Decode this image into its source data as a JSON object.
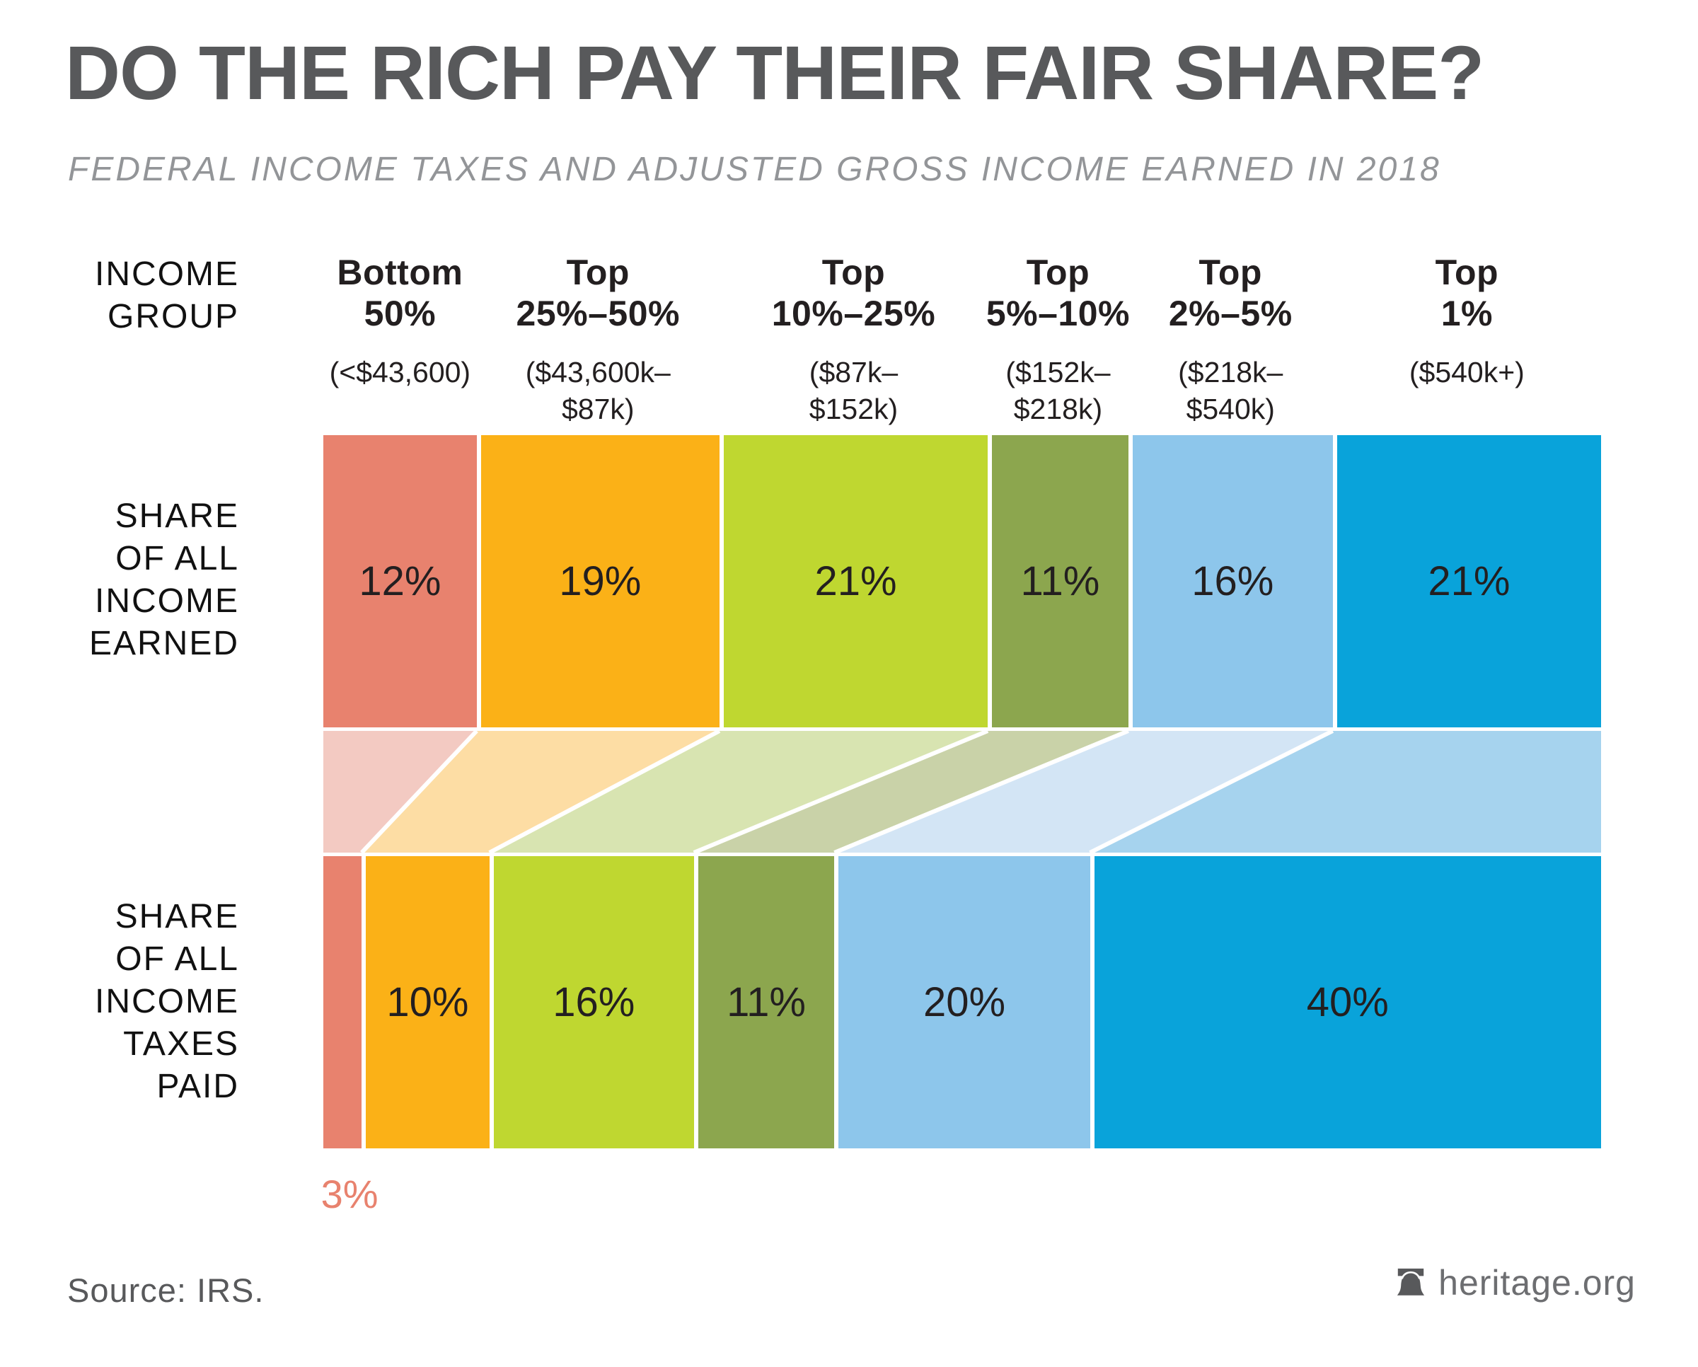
{
  "title": "DO THE RICH PAY THEIR FAIR SHARE?",
  "subtitle": "FEDERAL INCOME TAXES AND ADJUSTED GROSS INCOME EARNED IN 2018",
  "income_group_label": "INCOME\nGROUP",
  "row_labels": {
    "earned": "SHARE\nOF ALL\nINCOME\nEARNED",
    "taxes": "SHARE\nOF ALL\nINCOME\nTAXES\nPAID"
  },
  "footer": {
    "source": "Source: IRS.",
    "brand": "heritage.org",
    "brand_icon": "liberty-bell-icon"
  },
  "chart_data": {
    "type": "bar",
    "subtype": "100%-stacked-flow (two horizontal percentage bars linked by shaded flow band)",
    "title": "DO THE RICH PAY THEIR FAIR SHARE?",
    "xlabel": "INCOME GROUP",
    "grid": false,
    "legend": "none",
    "categories": [
      {
        "label": "Bottom\n50%",
        "range": "(<$43,600)"
      },
      {
        "label": "Top\n25%–50%",
        "range": "($43,600k–\n$87k)"
      },
      {
        "label": "Top\n10%–25%",
        "range": "($87k–\n$152k)"
      },
      {
        "label": "Top\n5%–10%",
        "range": "($152k–\n$218k)"
      },
      {
        "label": "Top\n2%–5%",
        "range": "($218k–\n$540k)"
      },
      {
        "label": "Top\n1%",
        "range": "($540k+)"
      }
    ],
    "series": [
      {
        "name": "SHARE OF ALL INCOME EARNED",
        "values": [
          12,
          19,
          21,
          11,
          16,
          21
        ],
        "labels": [
          "12%",
          "19%",
          "21%",
          "11%",
          "16%",
          "21%"
        ]
      },
      {
        "name": "SHARE OF ALL INCOME TAXES PAID",
        "values": [
          3,
          10,
          16,
          11,
          20,
          40
        ],
        "labels": [
          "3%",
          "10%",
          "16%",
          "11%",
          "20%",
          "40%"
        ]
      }
    ],
    "colors": [
      "#E8826E",
      "#FBB117",
      "#BFD730",
      "#8CA64E",
      "#8DC6EB",
      "#09A3DA"
    ],
    "tint_colors": [
      "#F3CAC2",
      "#FDDDA4",
      "#D8E4B1",
      "#C9D2A8",
      "#D3E5F5",
      "#A6D3EE"
    ],
    "label_color": "#231F20",
    "outside_label": {
      "series_index": 1,
      "segment_index": 0,
      "text": "3%",
      "color": "#E8826E"
    }
  }
}
